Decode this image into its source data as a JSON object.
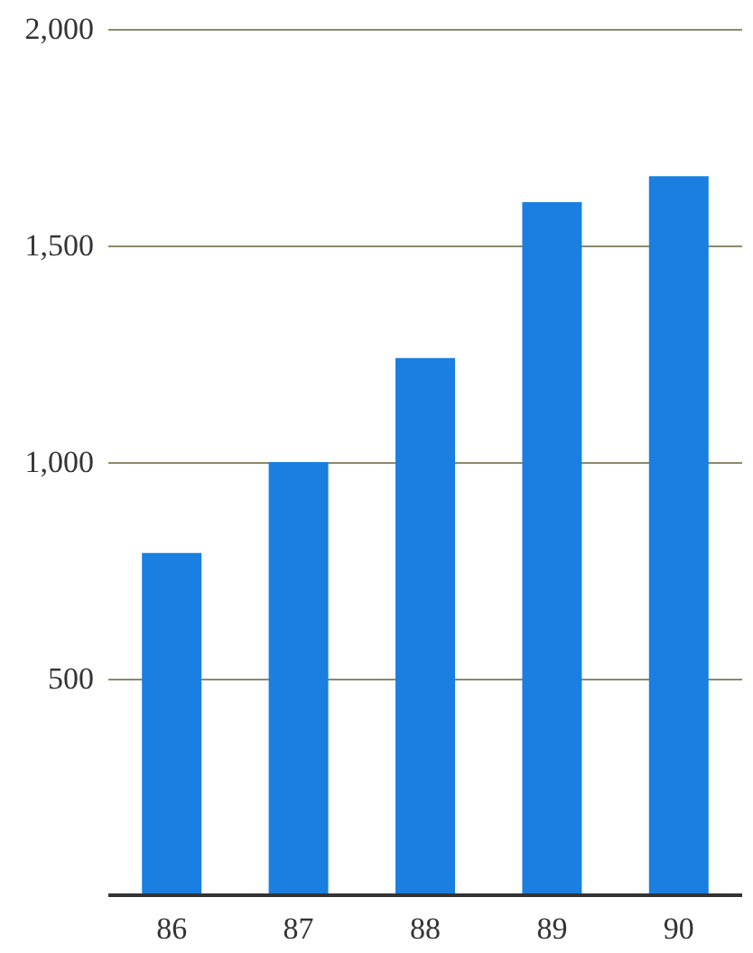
{
  "chart_data": {
    "type": "bar",
    "categories": [
      "86",
      "87",
      "88",
      "89",
      "90"
    ],
    "values": [
      790,
      1000,
      1240,
      1600,
      1660
    ],
    "color": "#1a7fe0",
    "ylim": [
      0,
      2000
    ],
    "yticks": [
      {
        "value": 500,
        "label": "500"
      },
      {
        "value": 1000,
        "label": "1,000"
      },
      {
        "value": 1500,
        "label": "1,500"
      },
      {
        "value": 2000,
        "label": "2,000"
      }
    ],
    "grid": "y"
  }
}
